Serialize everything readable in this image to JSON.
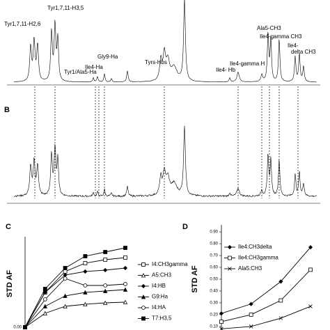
{
  "spectra": {
    "panel_b": "B",
    "peak_labels": [
      "Tyr1,7,11-H2,6",
      "Tyr1,7,11-H3,5",
      "Tyr1/Ala5-Ha",
      "Ile4-Ha",
      "Gly9-Ha",
      "Tyrs-Hbs",
      "Ile4- Hb",
      "Ile4-gamma H",
      "Ala5-CH3",
      "Ile4-gamma CH3",
      "Ile4-",
      "delta CH3"
    ]
  },
  "chart_data": [
    {
      "type": "line",
      "panel": "C",
      "y_label": "STD AF",
      "categories": [
        null,
        null,
        null,
        null,
        null,
        null
      ],
      "ylim": [
        0,
        0.25
      ],
      "yticks": [
        {
          "value": 0,
          "label": "0.00"
        }
      ],
      "series": [
        {
          "name": "I4:CH3gamma",
          "color": "#000000",
          "marker": "square-open",
          "values": [
            0,
            0.1,
            0.16,
            0.184,
            0.194,
            0.2
          ]
        },
        {
          "name": "A5:CH3",
          "color": "#000000",
          "marker": "triangle-open",
          "values": [
            0,
            0.04,
            0.06,
            0.066,
            0.07,
            0.072
          ]
        },
        {
          "name": "I4:HB",
          "color": "#000000",
          "marker": "diamond",
          "values": [
            0,
            0.1,
            0.15,
            0.16,
            0.164,
            0.17
          ]
        },
        {
          "name": "G9:Ha",
          "color": "#000000",
          "marker": "triangle",
          "values": [
            0,
            0.06,
            0.09,
            0.1,
            0.104,
            0.108
          ]
        },
        {
          "name": "I4:HA",
          "color": "#000000",
          "marker": "circle-open",
          "values": [
            0,
            0.08,
            0.14,
            0.12,
            0.12,
            0.124
          ]
        },
        {
          "name": "T7:H3,5",
          "color": "#000000",
          "marker": "square",
          "values": [
            0,
            0.11,
            0.17,
            0.204,
            0.216,
            0.228
          ]
        }
      ]
    },
    {
      "type": "line",
      "panel": "D",
      "y_label": "STD AF",
      "categories": [
        null,
        null,
        null,
        null
      ],
      "ylim": [
        0.07,
        0.93
      ],
      "yticks": [
        {
          "value": 0.1,
          "label": "0.10"
        },
        {
          "value": 0.2,
          "label": "0.20"
        },
        {
          "value": 0.3,
          "label": "0.30"
        },
        {
          "value": 0.4,
          "label": "0.40"
        },
        {
          "value": 0.5,
          "label": "0.50"
        },
        {
          "value": 0.6,
          "label": "0.60"
        },
        {
          "value": 0.7,
          "label": "0.70"
        },
        {
          "value": 0.8,
          "label": "0.80"
        },
        {
          "value": 0.9,
          "label": "0.90"
        }
      ],
      "series": [
        {
          "name": "Ile4:CH3delta",
          "color": "#000000",
          "marker": "diamond",
          "values": [
            0.21,
            0.29,
            0.48,
            0.77
          ]
        },
        {
          "name": "Ile4:CH3gamma",
          "color": "#000000",
          "marker": "square-open",
          "values": [
            0.14,
            0.2,
            0.32,
            0.58
          ]
        },
        {
          "name": "Ala5:CH3",
          "color": "#000000",
          "marker": "cross",
          "values": [
            0.08,
            0.1,
            0.17,
            0.27
          ]
        }
      ]
    }
  ]
}
